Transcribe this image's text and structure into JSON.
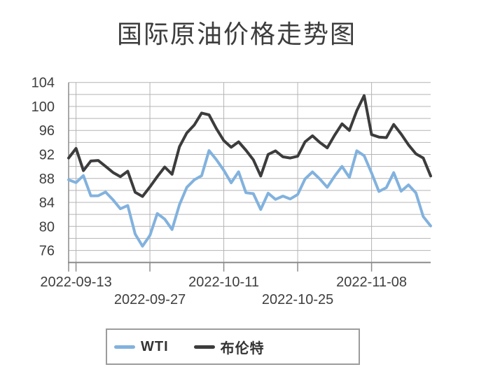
{
  "title": "国际原油价格走势图",
  "colors": {
    "wti": "#82B2DE",
    "brent": "#3C3C3C",
    "grid": "#b4b4b4",
    "axis": "#8c8c8c",
    "text": "#3e3e3e",
    "legend_border": "#9c9c9c"
  },
  "chart_data": {
    "type": "line",
    "title": "国际原油价格走势图",
    "x": [
      "2022-09-12",
      "2022-09-13",
      "2022-09-14",
      "2022-09-15",
      "2022-09-16",
      "2022-09-19",
      "2022-09-20",
      "2022-09-21",
      "2022-09-22",
      "2022-09-23",
      "2022-09-26",
      "2022-09-27",
      "2022-09-28",
      "2022-09-29",
      "2022-09-30",
      "2022-10-03",
      "2022-10-04",
      "2022-10-05",
      "2022-10-06",
      "2022-10-07",
      "2022-10-10",
      "2022-10-11",
      "2022-10-12",
      "2022-10-13",
      "2022-10-14",
      "2022-10-17",
      "2022-10-18",
      "2022-10-19",
      "2022-10-20",
      "2022-10-21",
      "2022-10-24",
      "2022-10-25",
      "2022-10-26",
      "2022-10-27",
      "2022-10-28",
      "2022-10-31",
      "2022-11-01",
      "2022-11-02",
      "2022-11-03",
      "2022-11-04",
      "2022-11-07",
      "2022-11-08",
      "2022-11-09",
      "2022-11-10",
      "2022-11-11",
      "2022-11-14",
      "2022-11-15",
      "2022-11-16",
      "2022-11-17",
      "2022-11-18"
    ],
    "series": [
      {
        "name": "WTI",
        "color": "#82B2DE",
        "values": [
          87.78,
          87.31,
          88.48,
          85.1,
          85.11,
          85.73,
          84.45,
          82.94,
          83.49,
          78.74,
          76.71,
          78.5,
          82.15,
          81.23,
          79.49,
          83.63,
          86.52,
          87.76,
          88.45,
          92.64,
          91.13,
          89.35,
          87.27,
          89.11,
          85.61,
          85.46,
          82.82,
          85.55,
          84.51,
          85.05,
          84.58,
          85.32,
          87.91,
          89.08,
          87.9,
          86.53,
          88.37,
          90.0,
          88.17,
          92.61,
          91.79,
          88.91,
          85.83,
          86.47,
          88.96,
          85.87,
          86.92,
          85.59,
          81.64,
          80.08
        ]
      },
      {
        "name": "布伦特",
        "color": "#3C3C3C",
        "values": [
          91.4,
          93.0,
          89.3,
          90.9,
          91.0,
          90.0,
          89.0,
          88.3,
          89.2,
          85.7,
          85.0,
          86.6,
          88.3,
          89.9,
          88.7,
          93.3,
          95.6,
          96.9,
          98.9,
          98.6,
          96.3,
          94.3,
          93.2,
          94.1,
          92.7,
          91.1,
          88.4,
          92.0,
          92.6,
          91.6,
          91.4,
          91.7,
          94.1,
          95.1,
          94.0,
          93.1,
          95.2,
          97.1,
          96.0,
          99.3,
          101.8,
          95.3,
          94.9,
          94.8,
          97.0,
          95.4,
          93.6,
          92.1,
          91.4,
          88.4
        ]
      }
    ],
    "ylim": [
      74,
      104
    ],
    "y_labeled_ticks": [
      76,
      80,
      84,
      88,
      92,
      96,
      100,
      104
    ],
    "y_grid_step": 2,
    "x_ticks": [
      {
        "index": 1,
        "label": "2022-09-13",
        "row": 1
      },
      {
        "index": 11,
        "label": "2022-09-27",
        "row": 2
      },
      {
        "index": 21,
        "label": "2022-10-11",
        "row": 1
      },
      {
        "index": 31,
        "label": "2022-10-25",
        "row": 2
      },
      {
        "index": 41,
        "label": "2022-11-08",
        "row": 1
      }
    ],
    "grid": true,
    "legend_position": "bottom"
  },
  "legend": {
    "items": [
      {
        "label": "WTI",
        "color": "#82B2DE"
      },
      {
        "label": "布伦特",
        "color": "#3C3C3C"
      }
    ]
  }
}
